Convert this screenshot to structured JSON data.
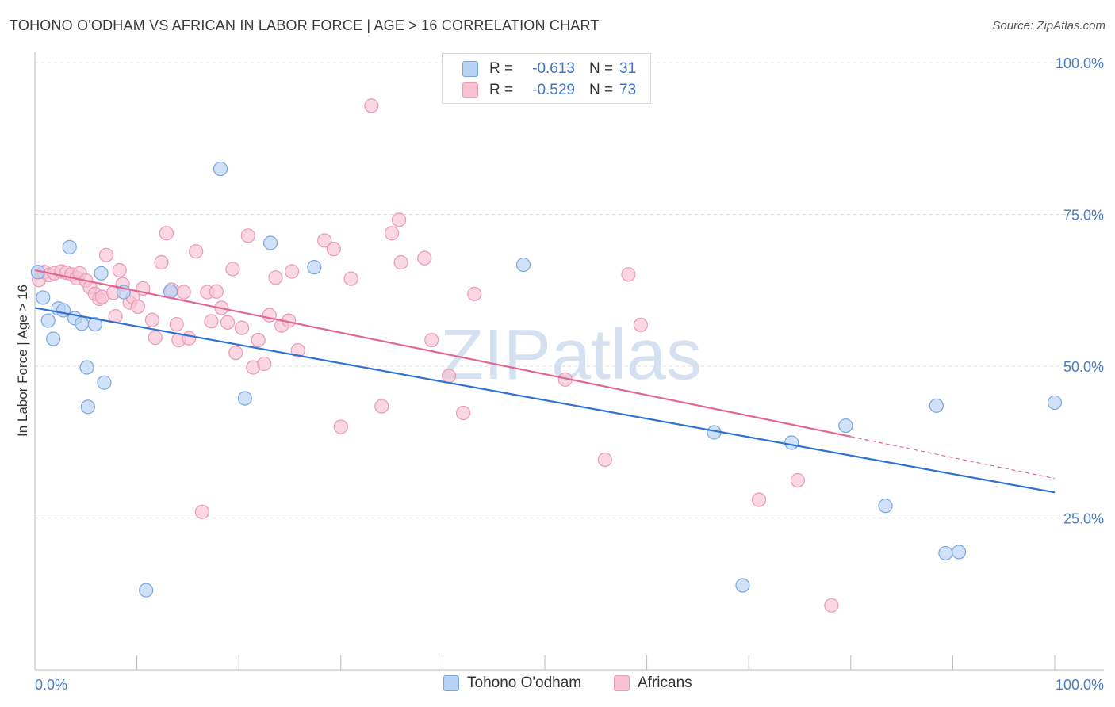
{
  "title": "TOHONO O'ODHAM VS AFRICAN IN LABOR FORCE | AGE > 16 CORRELATION CHART",
  "source": "Source: ZipAtlas.com",
  "watermark": "ZIPatlas",
  "legend": {
    "rows": [
      {
        "r_key": "R =",
        "r_value": "-0.613",
        "n_key": "N =",
        "n_value": "31"
      },
      {
        "r_key": "R =",
        "r_value": "-0.529",
        "n_key": "N =",
        "n_value": "73"
      }
    ]
  },
  "bottom_legend": [
    "Tohono O'odham",
    "Africans"
  ],
  "colors": {
    "tohono_fill": "#b8d3f5",
    "tohono_stroke": "#7aa6e0",
    "tohono_line": "#2f72d1",
    "african_fill": "#f8c2d3",
    "african_stroke": "#e99ab4",
    "african_line": "#e06792",
    "tick_text": "#4a7cc7",
    "grid": "#dcdcdc"
  },
  "chart_data": {
    "type": "scatter",
    "title": "TOHONO O'ODHAM VS AFRICAN IN LABOR FORCE | AGE > 16 CORRELATION CHART",
    "xlabel": "",
    "ylabel": "In Labor Force | Age > 16",
    "xlim": [
      0,
      100
    ],
    "ylim": [
      0,
      100
    ],
    "x_tick_labels": [
      "0.0%",
      "100.0%"
    ],
    "y_ticks": [
      25,
      50,
      75,
      100
    ],
    "y_tick_labels": [
      "25.0%",
      "50.0%",
      "75.0%",
      "100.0%"
    ],
    "grid": "horizontal dashed",
    "legend_position": "top-center",
    "series": [
      {
        "name": "Tohono O'odham",
        "r": -0.613,
        "n": 31,
        "trend": {
          "x": [
            0,
            100
          ],
          "y": [
            59.6,
            29.2
          ]
        },
        "points": [
          [
            0.3,
            65.5
          ],
          [
            0.8,
            61.3
          ],
          [
            1.3,
            57.5
          ],
          [
            1.8,
            54.5
          ],
          [
            2.3,
            59.5
          ],
          [
            2.8,
            59.2
          ],
          [
            3.4,
            69.6
          ],
          [
            3.9,
            57.9
          ],
          [
            4.6,
            57.0
          ],
          [
            5.1,
            49.8
          ],
          [
            5.2,
            43.3
          ],
          [
            5.9,
            56.9
          ],
          [
            6.5,
            65.3
          ],
          [
            6.8,
            47.3
          ],
          [
            8.7,
            62.2
          ],
          [
            10.9,
            13.1
          ],
          [
            13.3,
            62.3
          ],
          [
            18.2,
            82.5
          ],
          [
            20.6,
            44.7
          ],
          [
            23.1,
            70.3
          ],
          [
            27.4,
            66.3
          ],
          [
            47.9,
            66.7
          ],
          [
            66.6,
            39.1
          ],
          [
            69.4,
            13.9
          ],
          [
            74.2,
            37.4
          ],
          [
            79.5,
            40.2
          ],
          [
            83.4,
            27.0
          ],
          [
            88.4,
            43.5
          ],
          [
            89.3,
            19.2
          ],
          [
            90.6,
            19.4
          ],
          [
            100.0,
            44.0
          ]
        ]
      },
      {
        "name": "Africans",
        "r": -0.529,
        "n": 73,
        "trend": {
          "x": [
            0,
            80
          ],
          "y": [
            65.8,
            38.4
          ]
        },
        "trend_extension": {
          "x": [
            80,
            100
          ],
          "y": [
            38.4,
            31.5
          ]
        },
        "points": [
          [
            0.4,
            64.2
          ],
          [
            0.9,
            65.5
          ],
          [
            1.4,
            65.0
          ],
          [
            1.9,
            65.3
          ],
          [
            2.6,
            65.6
          ],
          [
            3.1,
            65.4
          ],
          [
            3.6,
            65.1
          ],
          [
            4.1,
            64.5
          ],
          [
            4.4,
            65.3
          ],
          [
            5.0,
            64.1
          ],
          [
            5.4,
            63.0
          ],
          [
            5.9,
            61.9
          ],
          [
            6.3,
            61.1
          ],
          [
            6.6,
            61.4
          ],
          [
            7.0,
            68.3
          ],
          [
            7.7,
            62.1
          ],
          [
            7.9,
            58.2
          ],
          [
            8.3,
            65.8
          ],
          [
            8.6,
            63.5
          ],
          [
            9.3,
            60.5
          ],
          [
            9.6,
            61.4
          ],
          [
            10.1,
            59.8
          ],
          [
            10.6,
            62.8
          ],
          [
            11.5,
            57.6
          ],
          [
            11.8,
            54.7
          ],
          [
            12.4,
            67.1
          ],
          [
            12.9,
            71.9
          ],
          [
            13.4,
            62.6
          ],
          [
            13.9,
            56.9
          ],
          [
            14.1,
            54.3
          ],
          [
            14.6,
            62.2
          ],
          [
            15.1,
            54.6
          ],
          [
            15.8,
            68.9
          ],
          [
            16.4,
            26.0
          ],
          [
            16.9,
            62.2
          ],
          [
            17.3,
            57.4
          ],
          [
            17.8,
            62.3
          ],
          [
            18.3,
            59.6
          ],
          [
            18.9,
            57.2
          ],
          [
            19.4,
            66.0
          ],
          [
            19.7,
            52.2
          ],
          [
            20.3,
            56.3
          ],
          [
            20.9,
            71.5
          ],
          [
            21.4,
            49.8
          ],
          [
            21.9,
            54.3
          ],
          [
            22.5,
            50.4
          ],
          [
            23.0,
            58.4
          ],
          [
            23.6,
            64.6
          ],
          [
            24.2,
            56.7
          ],
          [
            24.9,
            57.5
          ],
          [
            25.2,
            65.6
          ],
          [
            25.8,
            52.6
          ],
          [
            28.4,
            70.7
          ],
          [
            29.3,
            69.3
          ],
          [
            30.0,
            40.0
          ],
          [
            31.0,
            64.4
          ],
          [
            33.0,
            92.9
          ],
          [
            34.0,
            43.4
          ],
          [
            35.0,
            71.9
          ],
          [
            35.7,
            74.1
          ],
          [
            35.9,
            67.1
          ],
          [
            38.2,
            67.8
          ],
          [
            38.9,
            54.3
          ],
          [
            40.6,
            48.4
          ],
          [
            42.0,
            42.3
          ],
          [
            43.1,
            61.9
          ],
          [
            52.0,
            47.8
          ],
          [
            55.9,
            34.6
          ],
          [
            58.2,
            65.1
          ],
          [
            59.4,
            56.8
          ],
          [
            78.1,
            10.6
          ],
          [
            71.0,
            28.0
          ],
          [
            74.8,
            31.2
          ]
        ]
      }
    ]
  }
}
